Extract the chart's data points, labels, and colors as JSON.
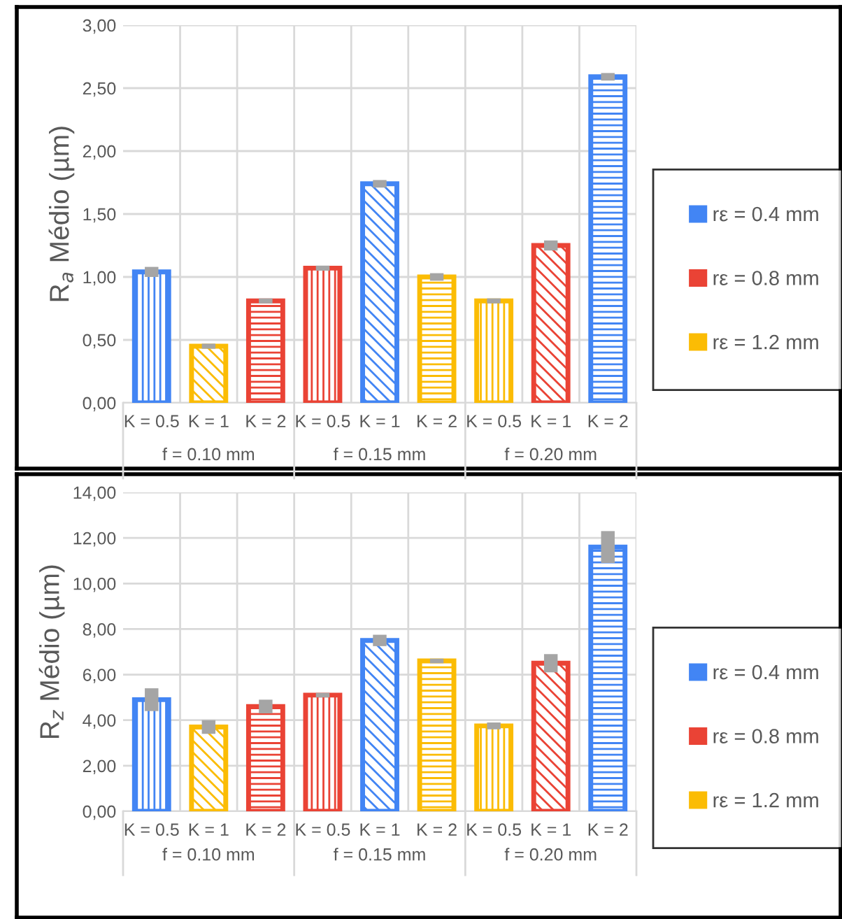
{
  "chart_data": [
    {
      "type": "bar",
      "ylabel": "R$_{a}$ Médio (µm)",
      "categories": [
        "K = 0.5",
        "K = 1",
        "K = 2",
        "K = 0.5",
        "K = 1",
        "K = 2",
        "K = 0.5",
        "K = 1",
        "K = 2"
      ],
      "annotations": [
        "f = 0.10 mm",
        "f = 0.15 mm",
        "f = 0.20 mm"
      ],
      "series": [
        {
          "name": "rε = 0.4 mm",
          "color": "#4285f4",
          "values": [
            1.04,
            null,
            null,
            null,
            1.74,
            null,
            null,
            null,
            2.59
          ],
          "errors": [
            0.04,
            null,
            null,
            null,
            0.03,
            null,
            null,
            null,
            0.03
          ]
        },
        {
          "name": "rε = 0.8 mm",
          "color": "#ea4335",
          "values": [
            null,
            null,
            0.81,
            1.07,
            null,
            null,
            null,
            1.25,
            null
          ],
          "errors": [
            null,
            null,
            0.02,
            0.02,
            null,
            null,
            null,
            0.04,
            null
          ]
        },
        {
          "name": "rε = 1.2 mm",
          "color": "#fbbc04",
          "values": [
            null,
            0.45,
            null,
            null,
            null,
            1.0,
            0.81,
            null,
            null
          ],
          "errors": [
            null,
            0.02,
            null,
            null,
            null,
            0.03,
            0.02,
            null,
            null
          ]
        }
      ],
      "ylim": [
        0,
        3
      ],
      "yticks": [
        {
          "value": 0,
          "label": "0,00"
        },
        {
          "value": 0.5,
          "label": "0,50"
        },
        {
          "value": 1,
          "label": "1,00"
        },
        {
          "value": 1.5,
          "label": "1,50"
        },
        {
          "value": 2,
          "label": "2,00"
        },
        {
          "value": 2.5,
          "label": "2,50"
        },
        {
          "value": 3,
          "label": "3,00"
        }
      ],
      "grid": true,
      "legend": "right"
    },
    {
      "type": "bar",
      "ylabel": "R$_{z}$ Médio (µm)",
      "categories": [
        "K = 0.5",
        "K = 1",
        "K = 2",
        "K = 0.5",
        "K = 1",
        "K = 2",
        "K = 0.5",
        "K = 1",
        "K = 2"
      ],
      "annotations": [
        "f = 0.10 mm",
        "f = 0.15 mm",
        "f = 0.20 mm"
      ],
      "series": [
        {
          "name": "rε = 0.4 mm",
          "color": "#4285f4",
          "values": [
            4.9,
            null,
            null,
            null,
            7.5,
            null,
            null,
            null,
            11.6
          ],
          "errors": [
            0.5,
            null,
            null,
            null,
            0.25,
            null,
            null,
            null,
            0.7
          ]
        },
        {
          "name": "rε = 0.8 mm",
          "color": "#ea4335",
          "values": [
            null,
            null,
            4.6,
            5.1,
            null,
            null,
            null,
            6.5,
            null
          ],
          "errors": [
            null,
            null,
            0.3,
            0.1,
            null,
            null,
            null,
            0.4,
            null
          ]
        },
        {
          "name": "rε = 1.2 mm",
          "color": "#fbbc04",
          "values": [
            null,
            3.7,
            null,
            null,
            null,
            6.6,
            3.75,
            null,
            null
          ],
          "errors": [
            null,
            0.3,
            null,
            null,
            null,
            0.1,
            0.15,
            null,
            null
          ]
        }
      ],
      "ylim": [
        0,
        14
      ],
      "yticks": [
        {
          "value": 0,
          "label": "0,00"
        },
        {
          "value": 2,
          "label": "2,00"
        },
        {
          "value": 4,
          "label": "4,00"
        },
        {
          "value": 6,
          "label": "6,00"
        },
        {
          "value": 8,
          "label": "8,00"
        },
        {
          "value": 10,
          "label": "10,00"
        },
        {
          "value": 12,
          "label": "12,00"
        },
        {
          "value": 14,
          "label": "14,00"
        }
      ],
      "grid": true,
      "legend": "right"
    }
  ]
}
